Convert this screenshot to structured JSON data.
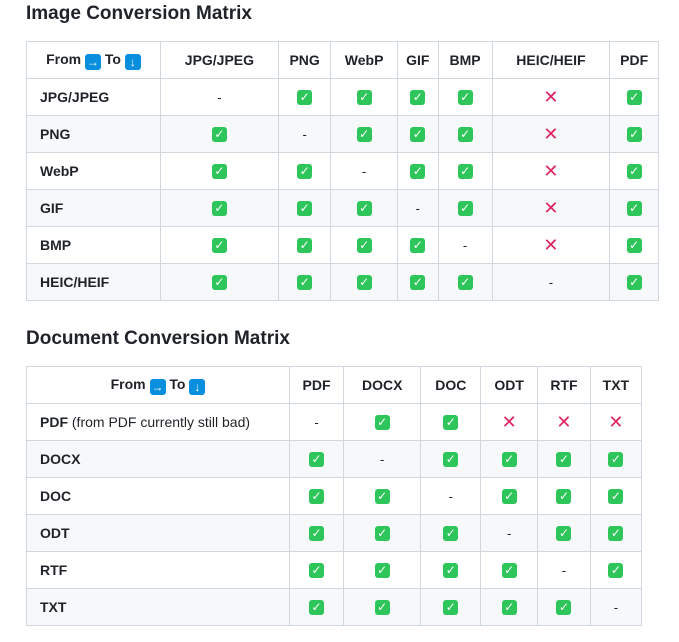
{
  "image_matrix": {
    "title": "Image Conversion Matrix",
    "corner": {
      "from": "From",
      "to": "To",
      "right_arrow_icon": "right-arrow",
      "down_arrow_icon": "down-arrow"
    },
    "columns": [
      "JPG/JPEG",
      "PNG",
      "WebP",
      "GIF",
      "BMP",
      "HEIC/HEIF",
      "PDF"
    ],
    "rows": [
      {
        "label": "JPG/JPEG",
        "cells": [
          "-",
          "yes",
          "yes",
          "yes",
          "yes",
          "no",
          "yes"
        ]
      },
      {
        "label": "PNG",
        "cells": [
          "yes",
          "-",
          "yes",
          "yes",
          "yes",
          "no",
          "yes"
        ]
      },
      {
        "label": "WebP",
        "cells": [
          "yes",
          "yes",
          "-",
          "yes",
          "yes",
          "no",
          "yes"
        ]
      },
      {
        "label": "GIF",
        "cells": [
          "yes",
          "yes",
          "yes",
          "-",
          "yes",
          "no",
          "yes"
        ]
      },
      {
        "label": "BMP",
        "cells": [
          "yes",
          "yes",
          "yes",
          "yes",
          "-",
          "no",
          "yes"
        ]
      },
      {
        "label": "HEIC/HEIF",
        "cells": [
          "yes",
          "yes",
          "yes",
          "yes",
          "yes",
          "-",
          "yes"
        ]
      }
    ]
  },
  "document_matrix": {
    "title": "Document Conversion Matrix",
    "corner": {
      "from": "From",
      "to": "To",
      "right_arrow_icon": "right-arrow",
      "down_arrow_icon": "down-arrow"
    },
    "columns": [
      "PDF",
      "DOCX",
      "DOC",
      "ODT",
      "RTF",
      "TXT"
    ],
    "rows": [
      {
        "label": "PDF",
        "note": "(from PDF currently still bad)",
        "cells": [
          "-",
          "yes",
          "yes",
          "no",
          "no",
          "no"
        ]
      },
      {
        "label": "DOCX",
        "cells": [
          "yes",
          "-",
          "yes",
          "yes",
          "yes",
          "yes"
        ]
      },
      {
        "label": "DOC",
        "cells": [
          "yes",
          "yes",
          "-",
          "yes",
          "yes",
          "yes"
        ]
      },
      {
        "label": "ODT",
        "cells": [
          "yes",
          "yes",
          "yes",
          "-",
          "yes",
          "yes"
        ]
      },
      {
        "label": "RTF",
        "cells": [
          "yes",
          "yes",
          "yes",
          "yes",
          "-",
          "yes"
        ]
      },
      {
        "label": "TXT",
        "cells": [
          "yes",
          "yes",
          "yes",
          "yes",
          "yes",
          "-"
        ]
      }
    ]
  },
  "symbols": {
    "yes": "✓",
    "no": "✕",
    "none": "-"
  },
  "colors": {
    "check_bg": "#2ec65b",
    "cross": "#e0245e",
    "arrow_bg": "#0a8fde",
    "stripe": "#f6f8fa",
    "border": "#d0d7de"
  }
}
